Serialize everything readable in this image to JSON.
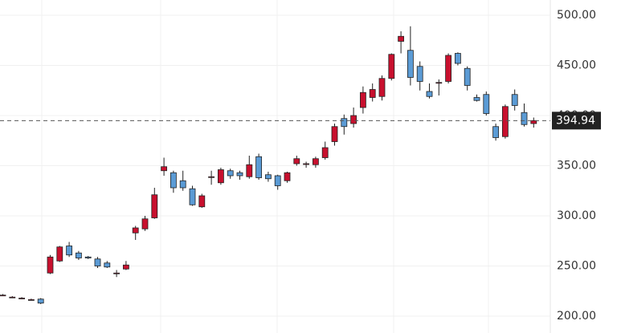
{
  "chart_data": {
    "type": "candlestick",
    "up_color": "#c8102e",
    "down_color": "#5b9bd5",
    "grid": true,
    "ylim": [
      183.2,
      515.2
    ],
    "yticks": [
      {
        "value": 200,
        "label": "200.00"
      },
      {
        "value": 250,
        "label": "250.00"
      },
      {
        "value": 300,
        "label": "300.00"
      },
      {
        "value": 350,
        "label": "350.00"
      },
      {
        "value": 400,
        "label": "400.00"
      },
      {
        "value": 450,
        "label": "450.00"
      },
      {
        "value": 500,
        "label": "500.00"
      }
    ],
    "last_price": {
      "value": 394.94,
      "label": "394.94"
    },
    "open": [
      221,
      219,
      218,
      216.5,
      217,
      243,
      255,
      270,
      263,
      259,
      257,
      253,
      243,
      247,
      283,
      287,
      298,
      345,
      343,
      335,
      327,
      309,
      339,
      333,
      345,
      343,
      339,
      359,
      341,
      340,
      335,
      352,
      352,
      351,
      358,
      374,
      397,
      392,
      408,
      418,
      419,
      437,
      474,
      465,
      449,
      424,
      433,
      434,
      462,
      447,
      418,
      421,
      389,
      379,
      421,
      403,
      392
    ],
    "high": [
      222,
      220,
      219,
      217.5,
      218,
      261,
      270,
      274,
      265,
      260,
      259,
      255,
      246,
      255,
      290,
      300,
      328,
      358,
      345,
      345,
      330,
      322,
      345,
      348,
      347,
      345,
      360,
      362,
      344,
      341,
      344,
      360,
      354,
      359,
      374,
      392,
      401,
      408,
      429,
      432,
      440,
      462,
      484,
      489,
      454,
      432,
      436,
      462,
      463,
      449,
      421,
      424,
      392,
      411,
      426,
      412,
      398
    ],
    "low": [
      220,
      218,
      217,
      215.5,
      212,
      242,
      254,
      259,
      256,
      257,
      248,
      248,
      239,
      246,
      276,
      285,
      297,
      340,
      323,
      325,
      310,
      308,
      331,
      331,
      337,
      336,
      337,
      336,
      334,
      326,
      333,
      350,
      348,
      348,
      356,
      370,
      381,
      388,
      402,
      414,
      415,
      435,
      462,
      430,
      425,
      417,
      420,
      432,
      450,
      425,
      414,
      400,
      375,
      377,
      405,
      389,
      388
    ],
    "close": [
      221,
      219,
      218,
      216.5,
      213,
      259,
      269,
      261,
      258,
      258,
      250,
      249,
      243,
      251,
      288,
      297,
      321,
      349,
      328,
      328,
      311,
      320,
      339,
      346,
      340,
      340,
      351,
      338,
      337,
      330,
      343,
      357,
      352,
      357,
      368,
      389,
      389,
      400,
      423,
      426,
      437,
      461,
      479,
      438,
      434,
      419,
      433,
      460,
      452,
      430,
      415,
      402,
      378,
      409,
      410,
      391,
      394.94
    ]
  }
}
